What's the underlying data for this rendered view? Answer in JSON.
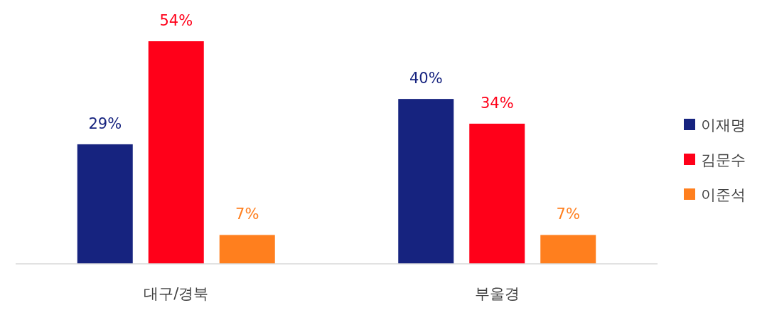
{
  "chart_data": {
    "type": "bar",
    "categories": [
      "대구/경북",
      "부울경"
    ],
    "series": [
      {
        "name": "이재명",
        "color": "#16237f",
        "values": [
          29,
          40
        ],
        "value_labels": [
          "29%",
          "40%"
        ]
      },
      {
        "name": "김문수",
        "color": "#ff0019",
        "values": [
          54,
          34
        ],
        "value_labels": [
          "54%",
          "34%"
        ]
      },
      {
        "name": "이준석",
        "color": "#ff7f1e",
        "values": [
          7,
          7
        ],
        "value_labels": [
          "7%",
          "7%"
        ]
      }
    ],
    "legend": "right"
  }
}
